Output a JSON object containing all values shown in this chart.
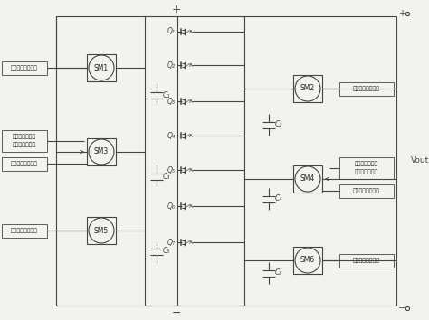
{
  "fig_width": 4.74,
  "fig_height": 3.54,
  "dpi": 100,
  "bg_color": "#f2f2ee",
  "line_color": "#444444",
  "text_color": "#222222",
  "sm_labels_left": [
    "SM1",
    "SM3",
    "SM5"
  ],
  "sm_labels_right": [
    "SM2",
    "SM4",
    "SM6"
  ],
  "cap_labels_left": [
    "C₁",
    "C₃",
    "C₅"
  ],
  "cap_labels_right": [
    "C₂",
    "C₄",
    "C₆"
  ],
  "q_labels": [
    "Q₁",
    "Q₂",
    "Q₃",
    "Q₄",
    "Q₅",
    "Q₆",
    "Q₇"
  ],
  "info_simple": "温度、光强、电压",
  "info_shadow1": "受到阴影或弱光",
  "info_shadow2": "条件下的电池串",
  "vout": "Vout"
}
